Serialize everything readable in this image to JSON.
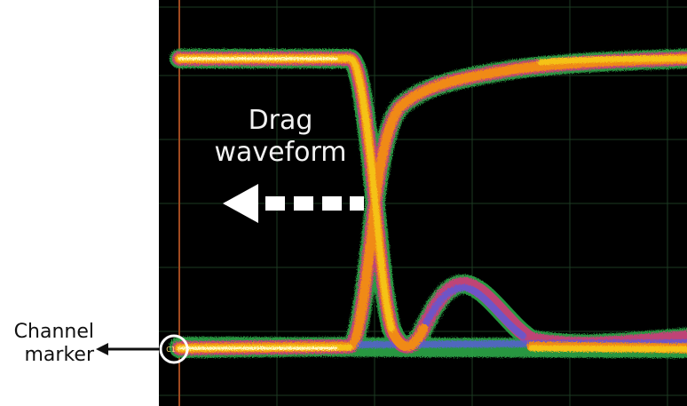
{
  "labels": {
    "drag_line1": "Drag",
    "drag_line2": "waveform",
    "channel_line1": "Channel",
    "channel_line2": "marker",
    "marker_text": "C1+"
  },
  "icons": {
    "drag_arrow": "left-arrow-dashed-icon",
    "channel_arrow": "left-arrow-icon"
  },
  "colors": {
    "background": "#000000",
    "grid": "#1f3a1f",
    "trace_core": "#fff7b0",
    "trace_yellow": "#f5c218",
    "trace_orange": "#f08a18",
    "trace_magenta": "#d0407a",
    "trace_blue": "#5a5adc",
    "trace_green": "#2ea84a",
    "marker_ring": "#ffffff",
    "left_rail": "#b04a20"
  }
}
